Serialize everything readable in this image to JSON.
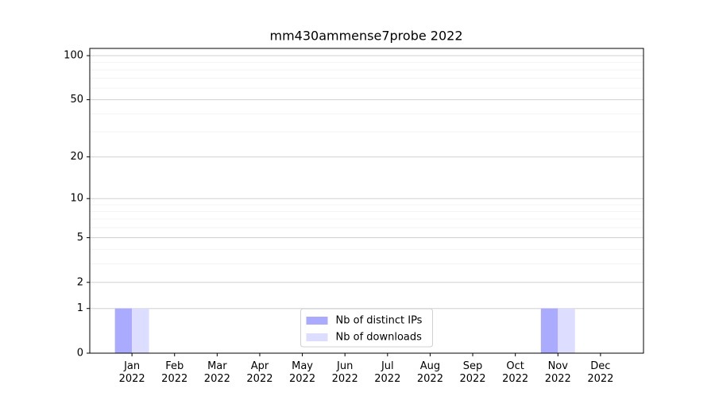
{
  "chart_data": {
    "type": "bar",
    "title": "mm430ammense7probe 2022",
    "categories": [
      "Jan\n2022",
      "Feb\n2022",
      "Mar\n2022",
      "Apr\n2022",
      "May\n2022",
      "Jun\n2022",
      "Jul\n2022",
      "Aug\n2022",
      "Sep\n2022",
      "Oct\n2022",
      "Nov\n2022",
      "Dec\n2022"
    ],
    "series": [
      {
        "name": "Nb of distinct IPs",
        "color": "#aaaaff",
        "values": [
          1,
          0,
          0,
          0,
          0,
          0,
          0,
          0,
          0,
          0,
          1,
          0
        ]
      },
      {
        "name": "Nb of downloads",
        "color": "#ddddff",
        "values": [
          1,
          0,
          0,
          0,
          0,
          0,
          0,
          0,
          0,
          0,
          1,
          0
        ]
      }
    ],
    "yscale": "log1p",
    "ylim": [
      0,
      112
    ],
    "yticks": [
      0,
      1,
      2,
      5,
      10,
      20,
      50,
      100
    ],
    "yminorticks": [
      3,
      4,
      6,
      7,
      8,
      9,
      30,
      40,
      60,
      70,
      80,
      90
    ],
    "grid": true,
    "legend": "lower center"
  }
}
